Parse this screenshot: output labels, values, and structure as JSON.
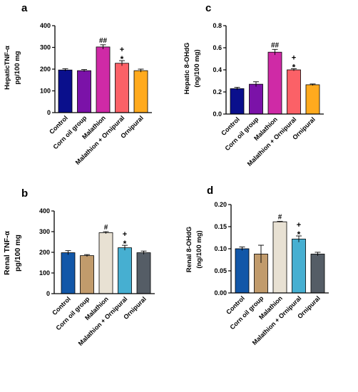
{
  "chart_data": [
    {
      "panel": "a",
      "type": "bar",
      "ylabel_lines": [
        "HepaticTNF-α",
        "pg/100 mg"
      ],
      "ylim": [
        0,
        400
      ],
      "yticks": [
        0,
        100,
        200,
        300,
        400
      ],
      "categories": [
        "Control",
        "Corn oil group",
        "Malathion",
        "Malathion + Ornipural",
        "Ornipural"
      ],
      "values": [
        196,
        193,
        302,
        227,
        193
      ],
      "errors": [
        6,
        5,
        10,
        12,
        7
      ],
      "colors": [
        "#0a0f8c",
        "#7b12a8",
        "#cf2aa6",
        "#fb6167",
        "#ffaa1e"
      ],
      "annotations": [
        [],
        [],
        [
          "##"
        ],
        [
          "+",
          "*"
        ],
        []
      ]
    },
    {
      "panel": "c",
      "type": "bar",
      "ylabel_lines": [
        "Hepatic 8-OHdG",
        "(ng/100 mg)"
      ],
      "ylim": [
        0,
        0.8
      ],
      "yticks": [
        "0.0",
        "0.2",
        "0.4",
        "0.6",
        "0.8"
      ],
      "categories": [
        "Control",
        "Corn oil group",
        "Malathion",
        "Malathion + Ornipural",
        "Ornipural"
      ],
      "values": [
        0.23,
        0.27,
        0.56,
        0.4,
        0.265
      ],
      "errors": [
        0.012,
        0.022,
        0.025,
        0.01,
        0.007
      ],
      "colors": [
        "#0a0f8c",
        "#7b12a8",
        "#cf2aa6",
        "#fb6167",
        "#ffaa1e"
      ],
      "annotations": [
        [],
        [],
        [
          "##"
        ],
        [
          "+",
          "*"
        ],
        []
      ]
    },
    {
      "panel": "b",
      "type": "bar",
      "ylabel_lines": [
        "Renal TNF-α",
        "pg/100 mg"
      ],
      "ylim": [
        0,
        400
      ],
      "yticks": [
        0,
        100,
        200,
        300,
        400
      ],
      "categories": [
        "Control",
        "Corn oil group",
        "Malathion",
        "Malathion + Ornipural",
        "Ornipural"
      ],
      "values": [
        198,
        184,
        295,
        222,
        198
      ],
      "errors": [
        10,
        5,
        5,
        12,
        8
      ],
      "colors": [
        "#1257a8",
        "#c19b6c",
        "#e8e1d3",
        "#46afd1",
        "#555d66"
      ],
      "annotations": [
        [],
        [],
        [
          "#"
        ],
        [
          "+",
          "*"
        ],
        []
      ]
    },
    {
      "panel": "d",
      "type": "bar",
      "ylabel_lines": [
        "Renal 8-OHdG",
        "(ng/100 mg)"
      ],
      "ylim": [
        0,
        0.2
      ],
      "yticks": [
        "0.00",
        "0.05",
        "0.10",
        "0.15",
        "0.20"
      ],
      "categories": [
        "Control",
        "Corn oil group",
        "Malathion",
        "Malathion + Ornipural",
        "Ornipural"
      ],
      "values": [
        0.1,
        0.088,
        0.161,
        0.122,
        0.088
      ],
      "errors": [
        0.004,
        0.02,
        0.001,
        0.007,
        0.004
      ],
      "colors": [
        "#1257a8",
        "#c19b6c",
        "#e8e1d3",
        "#46afd1",
        "#555d66"
      ],
      "annotations": [
        [],
        [],
        [
          "#"
        ],
        [
          "+",
          "*"
        ],
        []
      ]
    }
  ]
}
